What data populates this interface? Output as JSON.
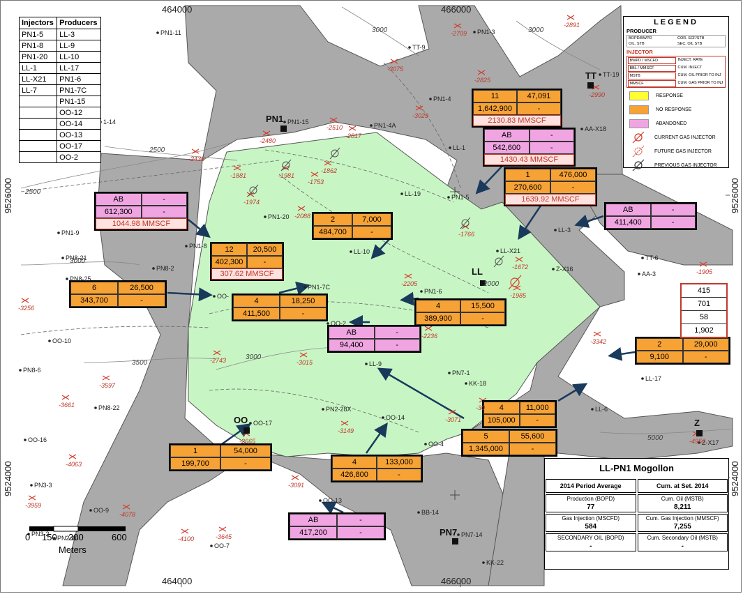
{
  "map": {
    "coords": {
      "top": [
        "464000",
        "466000"
      ],
      "bottom": [
        "464000",
        "466000"
      ],
      "left": [
        "9526000",
        "9524000"
      ],
      "right": [
        "9526000",
        "9524000"
      ]
    },
    "scale": {
      "ticks": [
        "0",
        "150",
        "300",
        "600"
      ],
      "unit": "Meters"
    },
    "colors": {
      "no_response": "#c8f5c4",
      "area_gray": "#aaaaaa",
      "orange": "#f7a234",
      "pink": "#f0a5e2",
      "depth": "#c0392b"
    }
  },
  "injectors_table": {
    "headers": [
      "Injectors",
      "Producers"
    ],
    "rows": [
      [
        "PN1-5",
        "LL-3"
      ],
      [
        "PN1-8",
        "LL-9"
      ],
      [
        "PN1-20",
        "LL-10"
      ],
      [
        "LL-1",
        "LL-17"
      ],
      [
        "LL-X21",
        "PN1-6"
      ],
      [
        "LL-7",
        "PN1-7C"
      ],
      [
        "",
        "PN1-15"
      ],
      [
        "",
        "OO-12"
      ],
      [
        "",
        "OO-14"
      ],
      [
        "",
        "OO-13"
      ],
      [
        "",
        "OO-17"
      ],
      [
        "",
        "OO-2"
      ]
    ]
  },
  "legend": {
    "title": "LEGEND",
    "producer_title": "PRODUCER",
    "producer_keys": [
      "BOPD/BWPD",
      "COR. SCF/STB",
      "OIL. STB",
      "SEC. OIL STB"
    ],
    "injector_title": "INJECTOR",
    "injector_keys": [
      "BWPD / MSCFD",
      "INJECT. RATE",
      "BBL / MMSCF",
      "CUM. INJECT",
      "MSTB",
      "CUM. OIL PRIOR TO INJ",
      "MMSCF",
      "CUM. GAS PRIOR TO INJ"
    ],
    "items": [
      {
        "label": "RESPONSE",
        "color": "#ffff33"
      },
      {
        "label": "NO RESPONSE",
        "color": "#f7a234"
      },
      {
        "label": "ABANDONED",
        "color": "#f0a5e2"
      }
    ],
    "icons": [
      {
        "label": "CURRENT GAS INJECTOR",
        "icon": "current-gas-injector-icon"
      },
      {
        "label": "FUTURE GAS INJECTOR",
        "icon": "future-gas-injector-icon"
      },
      {
        "label": "PREVIOUS GAS INJECTOR",
        "icon": "previous-gas-injector-icon"
      }
    ]
  },
  "boxes": [
    {
      "color": "orange",
      "r1": [
        "11",
        "47,091"
      ],
      "r2": [
        "1,642,900",
        "-"
      ],
      "gas": "2130.83 MMSCF"
    },
    {
      "color": "pink",
      "r1": [
        "AB",
        "-"
      ],
      "r2": [
        "542,600",
        "-"
      ],
      "gas": "1430.43 MMSCF"
    },
    {
      "color": "orange",
      "r1": [
        "1",
        "476,000"
      ],
      "r2": [
        "270,600",
        "-"
      ],
      "gas": "1639.92 MMSCF"
    },
    {
      "color": "pink",
      "r1": [
        "AB",
        "-"
      ],
      "r2": [
        "612,300",
        "-"
      ],
      "gas": "1044.98 MMSCF"
    },
    {
      "color": "pink",
      "r1": [
        "AB",
        "-"
      ],
      "r2": [
        "411,400",
        "-"
      ],
      "gas": ""
    },
    {
      "color": "orange",
      "r1": [
        "2",
        "7,000"
      ],
      "r2": [
        "484,700",
        "-"
      ],
      "gas": ""
    },
    {
      "color": "orange",
      "r1": [
        "12",
        "20,500"
      ],
      "r2": [
        "402,300",
        "-"
      ],
      "gas": "307.62 MMSCF"
    },
    {
      "color": "orange",
      "r1": [
        "6",
        "26,500"
      ],
      "r2": [
        "343,700",
        "-"
      ],
      "gas": ""
    },
    {
      "color": "orange",
      "r1": [
        "4",
        "18,250"
      ],
      "r2": [
        "411,500",
        "-"
      ],
      "gas": ""
    },
    {
      "color": "orange",
      "r1": [
        "4",
        "15,500"
      ],
      "r2": [
        "389,900",
        "-"
      ],
      "gas": ""
    },
    {
      "color": "pink",
      "r1": [
        "AB",
        "-"
      ],
      "r2": [
        "94,400",
        "-"
      ],
      "gas": ""
    },
    {
      "color": "orange",
      "r1": [
        "2",
        "29,000"
      ],
      "r2": [
        "9,100",
        "-"
      ],
      "gas": ""
    },
    {
      "color": "orange",
      "r1": [
        "4",
        "11,000"
      ],
      "r2": [
        "105,000",
        "-"
      ],
      "gas": ""
    },
    {
      "color": "orange",
      "r1": [
        "5",
        "55,600"
      ],
      "r2": [
        "1,345,000",
        "-"
      ],
      "gas": ""
    },
    {
      "color": "orange",
      "r1": [
        "1",
        "54,000"
      ],
      "r2": [
        "199,700",
        "-"
      ],
      "gas": ""
    },
    {
      "color": "orange",
      "r1": [
        "4",
        "133,000"
      ],
      "r2": [
        "426,800",
        "-"
      ],
      "gas": ""
    },
    {
      "color": "pink",
      "r1": [
        "AB",
        "-"
      ],
      "r2": [
        "417,200",
        "-"
      ],
      "gas": ""
    }
  ],
  "summary_box": [
    "415",
    "701",
    "58",
    "1,902"
  ],
  "info": {
    "title": "LL-PN1 Mogollon",
    "col_left": "2014 Period Average",
    "col_right": "Cum. at Set. 2014",
    "rows": [
      {
        "l_label": "Production (BOPD)",
        "l_value": "77",
        "r_label": "Cum. Oil (MSTB)",
        "r_value": "8,211"
      },
      {
        "l_label": "Gas Injection (MSCFD)",
        "l_value": "584",
        "r_label": "Cum. Gas Injection (MMSCF)",
        "r_value": "7,255"
      },
      {
        "l_label": "SECONDARY OIL (BOPD)",
        "l_value": "-",
        "r_label": "Cum. Secondary Oil (MSTB)",
        "r_value": "-"
      }
    ]
  },
  "big_wells": [
    "PN1",
    "LL",
    "TT",
    "OO",
    "PN7",
    "Z"
  ],
  "wells": [
    "PN1-11",
    "PN1-3",
    "TT-9",
    "TT-19",
    "AA-X18",
    "PN1-15",
    "PN1-4",
    "PN1-4A",
    "LL-1",
    "1-14",
    "LL-19",
    "PN1-5",
    "LL-3",
    "PN1-9",
    "PN1-20",
    "PN1-8",
    "PN8-21",
    "PN8-2",
    "PN8-25",
    "LL-10",
    "LL-X21",
    "Z-X16",
    "TT-6",
    "AA-3",
    "PN1-7C",
    "OO-",
    "PN1-6",
    "OO-2",
    "OO-10",
    "PN8-6",
    "LL-9",
    "PN7-1",
    "KK-18",
    "LL-17",
    "PN8-22",
    "PN2-28X",
    "OO-14",
    "OO-17",
    "LL-6",
    "Z-X17",
    "OO-16",
    "OO-4",
    "PN3-3",
    "OO-13",
    "OO-9",
    "BB-14",
    "PN3-2",
    "PN2-10",
    "OO-7",
    "PN7-14",
    "KK-22"
  ],
  "depths": [
    "-2709",
    "-2891",
    "-3075",
    "-2825",
    "-2990",
    "-3029",
    "-2436",
    "-2480",
    "-2510",
    "-2817",
    "-1881",
    "-1981",
    "-1862",
    "-1753",
    "-1974",
    "-2088",
    "-1766",
    "-1672",
    "-1905",
    "-1985",
    "-2205",
    "-3256",
    "-2236",
    "-3342",
    "-2743",
    "-3015",
    "-3597",
    "-3661",
    "-30",
    "-3071",
    "-3149",
    "-4063",
    "-2665",
    "-4950",
    "-3959",
    "-4078",
    "-3091",
    "-4100",
    "-3645"
  ],
  "contours": [
    "3000",
    "3000",
    "2500",
    "2500",
    "3000",
    "2000",
    "3500",
    "3000",
    "5000"
  ]
}
